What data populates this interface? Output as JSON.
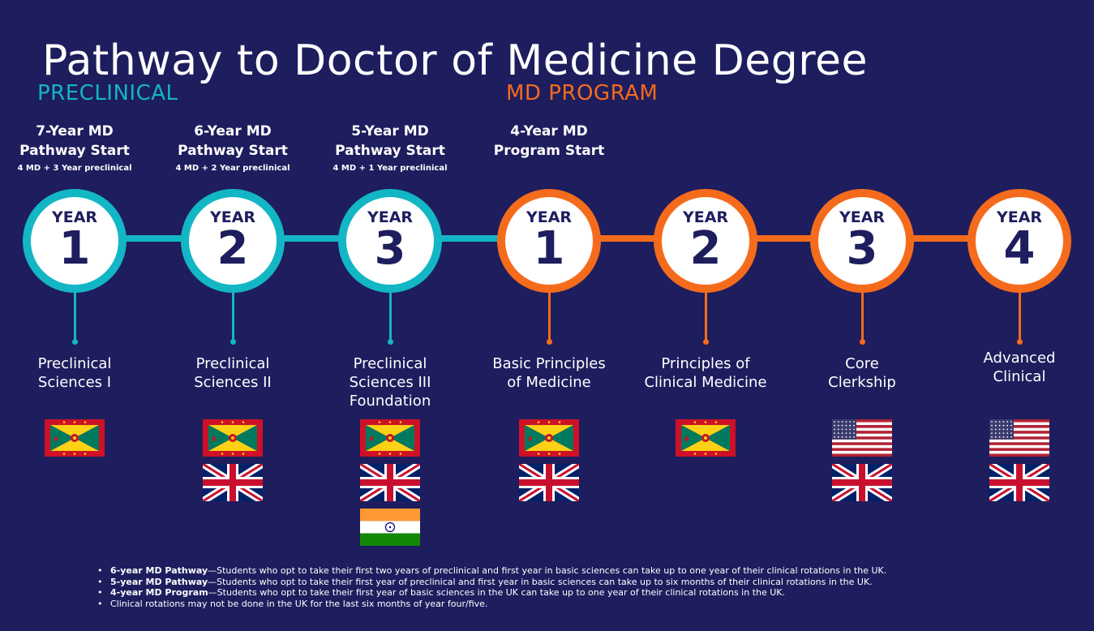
{
  "title": "Pathway to Doctor of Medicine Degree",
  "sections": {
    "preclinical": "PRECLINICAL",
    "md_program": "MD PROGRAM"
  },
  "colors": {
    "background": "#1e1d5e",
    "preclinical": "#13b6c4",
    "md_program": "#f56b1c"
  },
  "starts": [
    {
      "title_line1": "7-Year MD",
      "title_line2": "Pathway Start",
      "sub": "4 MD + 3 Year preclinical"
    },
    {
      "title_line1": "6-Year MD",
      "title_line2": "Pathway Start",
      "sub": "4 MD + 2 Year preclinical"
    },
    {
      "title_line1": "5-Year MD",
      "title_line2": "Pathway Start",
      "sub": "4 MD + 1 Year preclinical"
    },
    {
      "title_line1": "4-Year MD",
      "title_line2": "Program Start",
      "sub": ""
    }
  ],
  "years": [
    {
      "label": "YEAR",
      "number": "1",
      "course": [
        "Preclinical",
        "Sciences I"
      ],
      "flags": [
        "grenada"
      ]
    },
    {
      "label": "YEAR",
      "number": "2",
      "course": [
        "Preclinical",
        "Sciences II"
      ],
      "flags": [
        "grenada",
        "uk"
      ]
    },
    {
      "label": "YEAR",
      "number": "3",
      "course": [
        "Preclinical",
        "Sciences III",
        "Foundation"
      ],
      "flags": [
        "grenada",
        "uk",
        "india"
      ]
    },
    {
      "label": "YEAR",
      "number": "1",
      "course": [
        "Basic Principles",
        "of Medicine"
      ],
      "flags": [
        "grenada",
        "uk"
      ]
    },
    {
      "label": "YEAR",
      "number": "2",
      "course": [
        "Principles of",
        "Clinical Medicine"
      ],
      "flags": [
        "grenada"
      ]
    },
    {
      "label": "YEAR",
      "number": "3",
      "course": [
        "Core",
        "Clerkship"
      ],
      "flags": [
        "usa",
        "uk"
      ]
    },
    {
      "label": "YEAR",
      "number": "4",
      "course": [
        "Advanced",
        "Clinical"
      ],
      "flags": [
        "usa",
        "uk"
      ]
    }
  ],
  "notes": [
    {
      "bold": "6-year MD Pathway",
      "text": "—Students who opt to take their first two years of preclinical and first year in basic sciences can take up to one year of their clinical rotations in the UK."
    },
    {
      "bold": "5-year MD Pathway",
      "text": "—Students who opt to take their first year of preclinical and first year in basic sciences can take up to six months of their clinical rotations in the UK."
    },
    {
      "bold": "4-year MD Program",
      "text": "—Students who opt to take their first year of basic sciences in the UK can take up to one year of their clinical rotations in the UK."
    },
    {
      "bold": "",
      "text": "Clinical rotations may not be done in the UK for the last six months of year four/five."
    }
  ]
}
